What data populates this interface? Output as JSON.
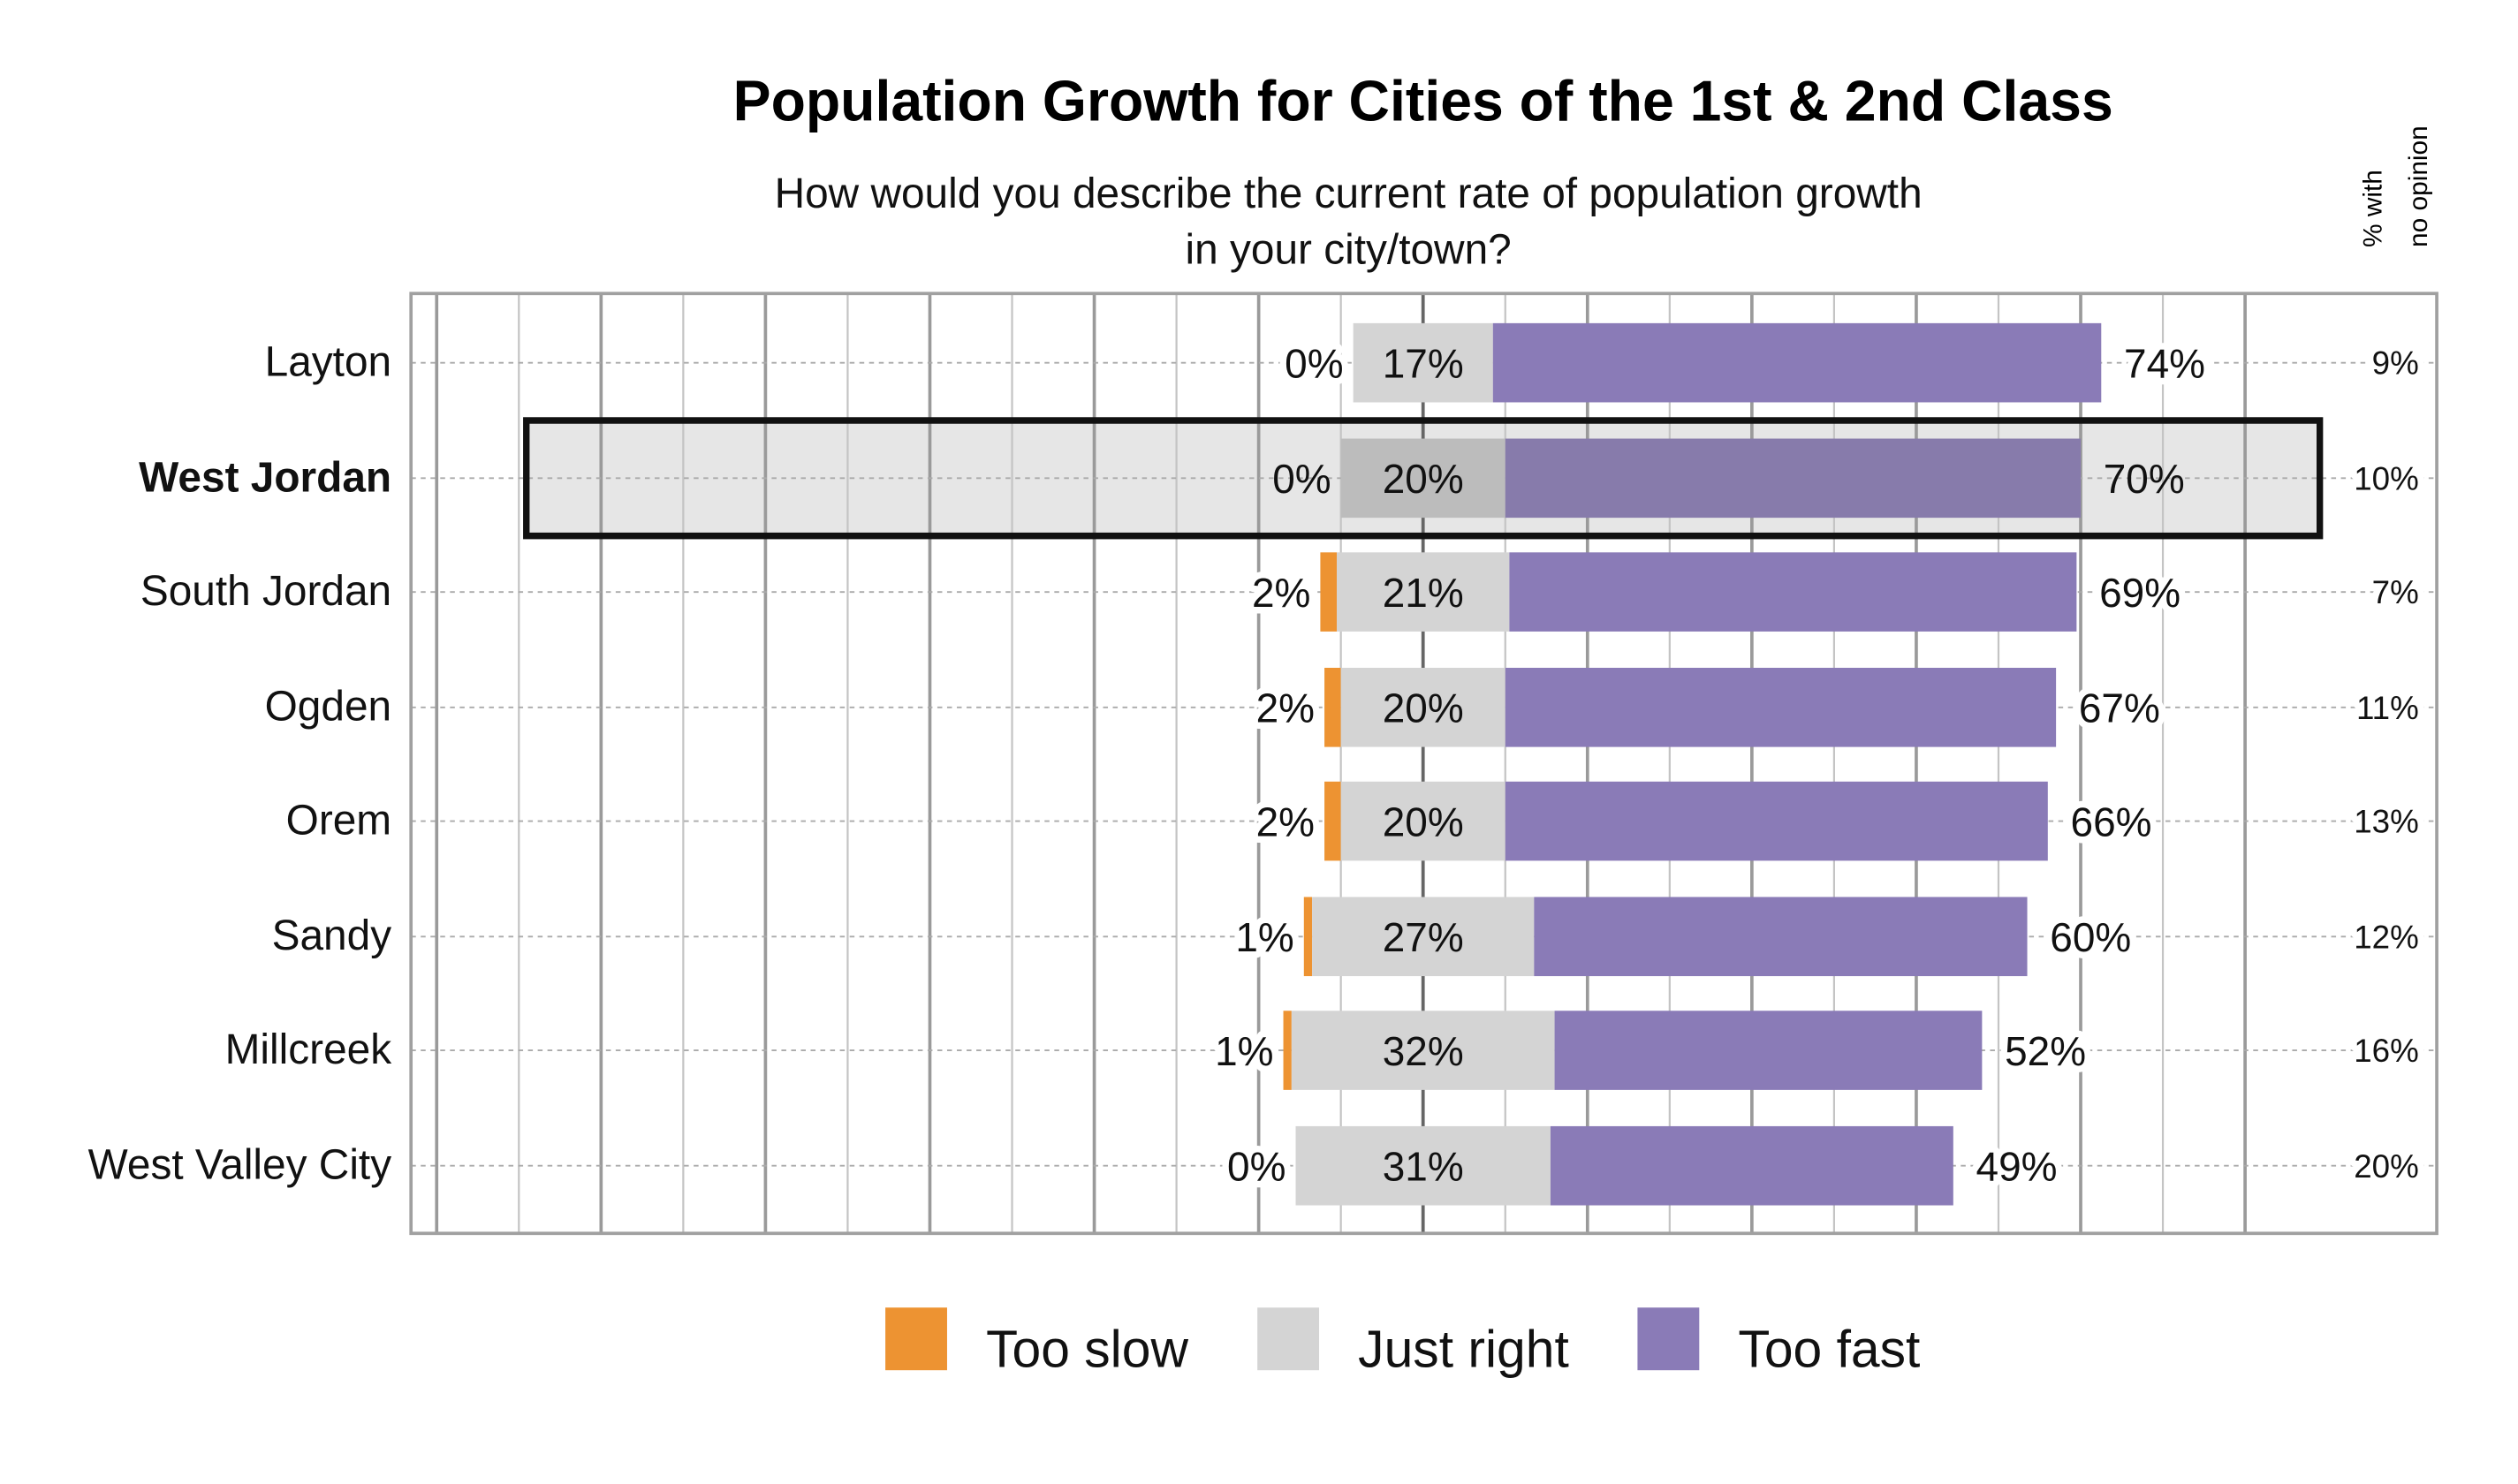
{
  "chart_data": {
    "type": "bar",
    "orientation": "horizontal",
    "stacked": "diverging",
    "title": "Population Growth for Cities of the 1st & 2nd Class",
    "subtitle_line1": "How would you describe the current rate of population growth",
    "subtitle_line2": "in your city/town?",
    "side_header_line1": "% with",
    "side_header_line2": "no opinion",
    "categories": [
      "Layton",
      "West Jordan",
      "South Jordan",
      "Ogden",
      "Orem",
      "Sandy",
      "Millcreek",
      "West Valley City"
    ],
    "highlighted_category": "West Jordan",
    "series": [
      {
        "name": "Too slow",
        "color": "#ed9332",
        "values": [
          0,
          0,
          2,
          2,
          2,
          1,
          1,
          0
        ],
        "labels": [
          "0%",
          "0%",
          "2%",
          "2%",
          "2%",
          "1%",
          "1%",
          "0%"
        ]
      },
      {
        "name": "Just right",
        "color": "#d4d4d4",
        "values": [
          17,
          20,
          21,
          20,
          20,
          27,
          32,
          31
        ],
        "labels": [
          "17%",
          "20%",
          "21%",
          "20%",
          "20%",
          "27%",
          "32%",
          "31%"
        ]
      },
      {
        "name": "Too fast",
        "color": "#8a7bb7",
        "values": [
          74,
          70,
          69,
          67,
          66,
          60,
          52,
          49
        ],
        "labels": [
          "74%",
          "70%",
          "69%",
          "67%",
          "66%",
          "60%",
          "52%",
          "49%"
        ]
      }
    ],
    "no_opinion": [
      "9%",
      "10%",
      "7%",
      "11%",
      "13%",
      "12%",
      "16%",
      "20%"
    ],
    "grid": true,
    "legend_position": "bottom",
    "highlight_colors": {
      "Just right": "#bcbcbc",
      "Too fast": "#877bab",
      "background": "#e6e6e6"
    }
  }
}
